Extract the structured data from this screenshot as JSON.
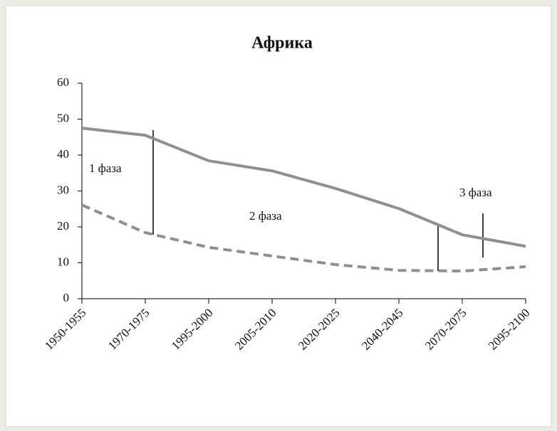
{
  "chart_data": {
    "type": "line",
    "title": "Африка",
    "categories": [
      "1950-1955",
      "1970-1975",
      "1995-2000",
      "2005-2010",
      "2020-2025",
      "2040-2045",
      "2070-2075",
      "2095-2100"
    ],
    "series": [
      {
        "color": "#8f8f8f",
        "dashed": false,
        "values": [
          47.5,
          45.5,
          38.4,
          35.6,
          30.7,
          25.1,
          17.8,
          14.6
        ]
      },
      {
        "color": "#8f8f8f",
        "dashed": true,
        "values": [
          26.1,
          18.4,
          14.3,
          11.9,
          9.5,
          7.9,
          7.7,
          8.9
        ]
      }
    ],
    "ylim": [
      0,
      60
    ],
    "yticks": [
      0,
      10,
      20,
      30,
      40,
      50,
      60
    ],
    "grid": false,
    "annotations": [
      "1 фаза",
      "2 фаза",
      "3 фаза"
    ]
  }
}
